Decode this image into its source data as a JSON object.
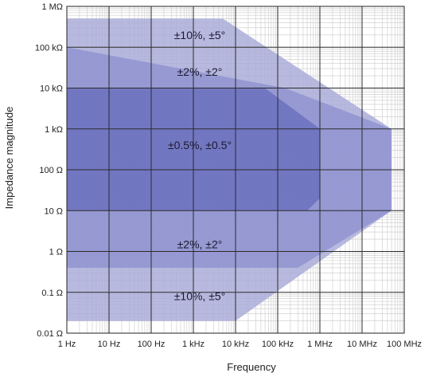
{
  "chart_data": {
    "type": "area",
    "xlabel": "Frequency",
    "ylabel": "Impedance magnitude",
    "x_scale": "log",
    "y_scale": "log",
    "xlim": [
      1,
      1000000000
    ],
    "ylim": [
      0.01,
      1000000
    ],
    "grid": true,
    "x_ticks": [
      {
        "value": 1,
        "label": "1 Hz"
      },
      {
        "value": 10,
        "label": "10 Hz"
      },
      {
        "value": 100,
        "label": "100 Hz"
      },
      {
        "value": 1000,
        "label": "1 kHz"
      },
      {
        "value": 10000,
        "label": "10 kHz"
      },
      {
        "value": 100000,
        "label": "100 kHz"
      },
      {
        "value": 1000000,
        "label": "1 MHz"
      },
      {
        "value": 10000000,
        "label": "10 MHz"
      },
      {
        "value": 100000000,
        "label": "100 MHz"
      }
    ],
    "y_ticks": [
      {
        "value": 0.01,
        "label": "0.01 Ω"
      },
      {
        "value": 0.1,
        "label": "0.1 Ω"
      },
      {
        "value": 1,
        "label": "1 Ω"
      },
      {
        "value": 10,
        "label": "10 Ω"
      },
      {
        "value": 100,
        "label": "100 Ω"
      },
      {
        "value": 1000,
        "label": "1 kΩ"
      },
      {
        "value": 10000,
        "label": "10 kΩ"
      },
      {
        "value": 100000,
        "label": "100 kΩ"
      },
      {
        "value": 1000000,
        "label": "1 MΩ"
      }
    ],
    "regions": [
      {
        "label": "±10%, ±5°",
        "color": "#a7aad8",
        "polygon": [
          [
            1,
            0.02
          ],
          [
            10000,
            0.02
          ],
          [
            50000000,
            10
          ],
          [
            50000000,
            1000
          ],
          [
            5000,
            500000
          ],
          [
            1,
            500000
          ]
        ],
        "label_positions": [
          [
            1000,
            200000
          ],
          [
            1000,
            0.08
          ]
        ]
      },
      {
        "label": "±2%, ±2°",
        "color": "#8f93cf",
        "polygon": [
          [
            1,
            0.4
          ],
          [
            300000,
            0.4
          ],
          [
            50000000,
            10
          ],
          [
            50000000,
            1000
          ],
          [
            150000,
            10000
          ],
          [
            1,
            100000
          ]
        ],
        "label_positions": [
          [
            1000,
            25000
          ],
          [
            1000,
            1.5
          ]
        ]
      },
      {
        "label": "±0.5%, ±0.5°",
        "color": "#6a6fbd",
        "polygon": [
          [
            1,
            10
          ],
          [
            500000,
            10
          ],
          [
            1000000,
            20
          ],
          [
            1000000,
            1000
          ],
          [
            50000,
            10000
          ],
          [
            1,
            10000
          ]
        ],
        "label_positions": [
          [
            1000,
            400
          ]
        ]
      }
    ]
  }
}
